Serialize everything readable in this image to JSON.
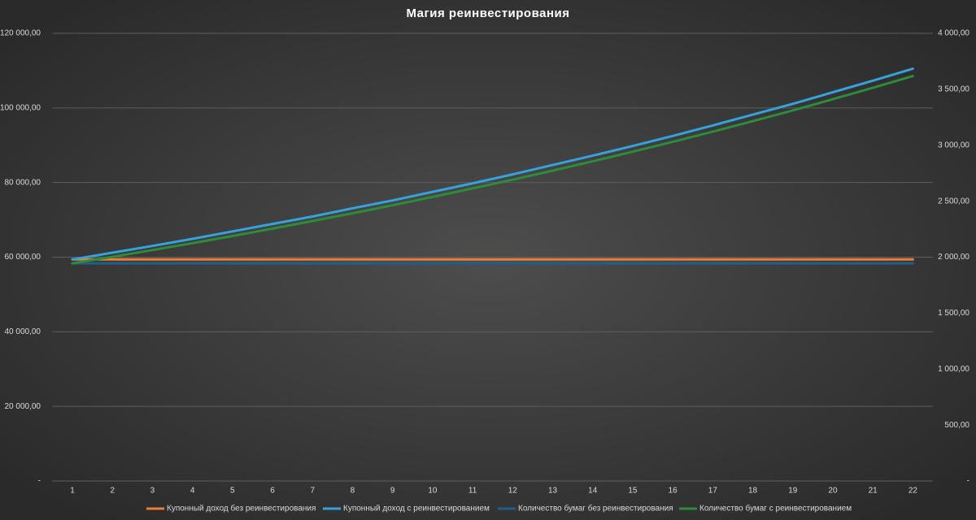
{
  "chart_data": {
    "type": "line",
    "title": "Магия реинвестирования",
    "categories": [
      "1",
      "2",
      "3",
      "4",
      "5",
      "6",
      "7",
      "8",
      "9",
      "10",
      "11",
      "12",
      "13",
      "14",
      "15",
      "16",
      "17",
      "18",
      "19",
      "20",
      "21",
      "22"
    ],
    "series": [
      {
        "name": "Купонный доход без реинвестирования",
        "color": "#ed7d31",
        "axis": "y",
        "values": [
          59400,
          59400,
          59400,
          59400,
          59400,
          59400,
          59400,
          59400,
          59400,
          59400,
          59400,
          59400,
          59400,
          59400,
          59400,
          59400,
          59400,
          59400,
          59400,
          59400,
          59400,
          59400
        ]
      },
      {
        "name": "Купонный доход с реинвестированием",
        "color": "#35a2dc",
        "axis": "y",
        "values": [
          59400,
          61200,
          63000,
          64900,
          66900,
          68900,
          70900,
          73100,
          75200,
          77500,
          79800,
          82200,
          84700,
          87200,
          89800,
          92500,
          95300,
          98200,
          101100,
          104200,
          107300,
          110500
        ]
      },
      {
        "name": "Количество бумаг без реинвестирования",
        "color": "#1f5f8b",
        "axis": "y2",
        "values": [
          1945,
          1945,
          1945,
          1945,
          1945,
          1945,
          1945,
          1945,
          1945,
          1945,
          1945,
          1945,
          1945,
          1945,
          1945,
          1945,
          1945,
          1945,
          1945,
          1945,
          1945,
          1945
        ]
      },
      {
        "name": "Количество бумаг с реинвестированием",
        "color": "#2e8b3a",
        "axis": "y2",
        "values": [
          1945,
          2003,
          2063,
          2125,
          2189,
          2255,
          2323,
          2392,
          2464,
          2538,
          2614,
          2692,
          2773,
          2856,
          2942,
          3030,
          3121,
          3215,
          3311,
          3411,
          3513,
          3618
        ]
      }
    ],
    "ylim": [
      0,
      120000
    ],
    "yticks": [
      {
        "value": 0,
        "label": "-"
      },
      {
        "value": 20000,
        "label": "20 000,00"
      },
      {
        "value": 40000,
        "label": "40 000,00"
      },
      {
        "value": 60000,
        "label": "60 000,00"
      },
      {
        "value": 80000,
        "label": "80 000,00"
      },
      {
        "value": 100000,
        "label": "100 000,00"
      },
      {
        "value": 120000,
        "label": "120 000,00"
      }
    ],
    "y2lim": [
      0,
      4000
    ],
    "y2ticks": [
      {
        "value": 0,
        "label": "-"
      },
      {
        "value": 500,
        "label": "500,00"
      },
      {
        "value": 1000,
        "label": "1 000,00"
      },
      {
        "value": 1500,
        "label": "1 500,00"
      },
      {
        "value": 2000,
        "label": "2 000,00"
      },
      {
        "value": 2500,
        "label": "2 500,00"
      },
      {
        "value": 3000,
        "label": "3 000,00"
      },
      {
        "value": 3500,
        "label": "3 500,00"
      },
      {
        "value": 4000,
        "label": "4 000,00"
      }
    ],
    "grid": true,
    "legend": "bottom"
  }
}
